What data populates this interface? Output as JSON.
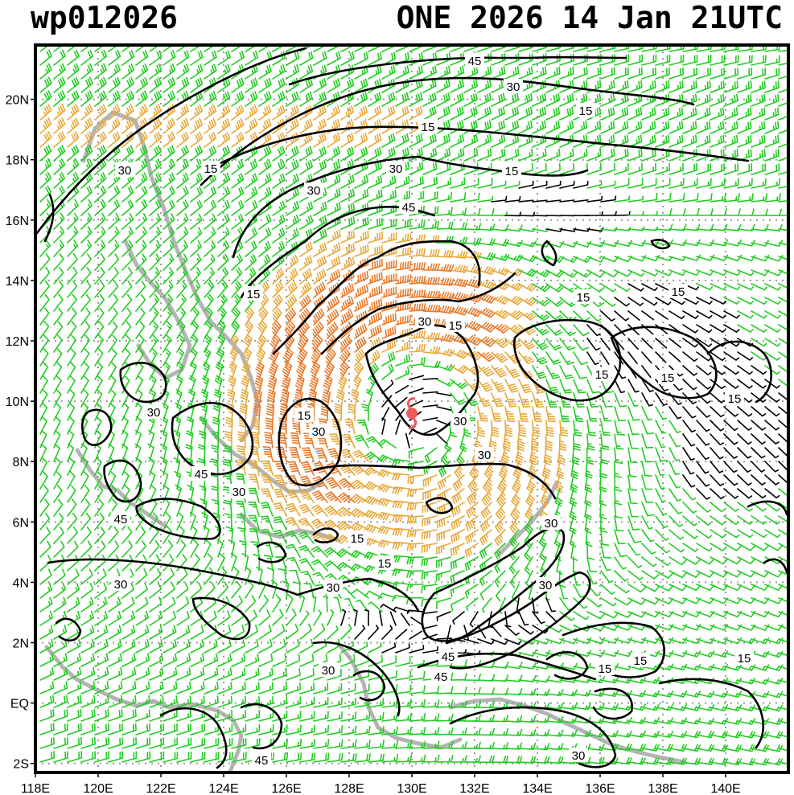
{
  "header": {
    "storm_id": "wp012026",
    "model_time": "ONE 2026 14 Jan 21UTC"
  },
  "map": {
    "x_labels": [
      "118E",
      "120E",
      "122E",
      "124E",
      "126E",
      "128E",
      "130E",
      "132E",
      "134E",
      "136E",
      "138E",
      "140E"
    ],
    "y_labels": [
      "20N",
      "18N",
      "16N",
      "14N",
      "12N",
      "10N",
      "8N",
      "6N",
      "4N",
      "2N",
      "EQ",
      "2S"
    ],
    "x_range_deg": [
      118,
      142
    ],
    "y_range_deg": [
      -2.3,
      21.8
    ],
    "contour_labels": [
      "45",
      "30",
      "15",
      "15",
      "30",
      "15",
      "30",
      "15",
      "45",
      "30",
      "15",
      "15",
      "15",
      "30",
      "15",
      "15",
      "15",
      "15",
      "30",
      "15",
      "30",
      "30",
      "30",
      "45",
      "30",
      "45",
      "15",
      "30",
      "15",
      "30",
      "30",
      "30",
      "45",
      "15",
      "30",
      "45",
      "15"
    ],
    "colors": {
      "barb_low": "#22cc22",
      "barb_mid": "#e8a838",
      "barb_high": "#e87a2a",
      "coast": "#b4b4b4",
      "grid": "#9a9a9a",
      "contour": "#000000",
      "center_marker": "#f05a5a"
    },
    "storm_center": {
      "lon": 130.0,
      "lat": 9.6
    }
  }
}
